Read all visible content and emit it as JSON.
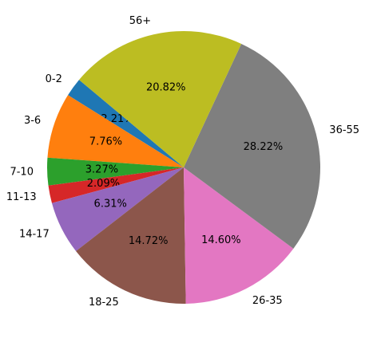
{
  "chart_data": {
    "type": "pie",
    "categories": [
      "0-2",
      "3-6",
      "7-10",
      "11-13",
      "14-17",
      "18-25",
      "26-35",
      "36-55",
      "56+"
    ],
    "values": [
      2.21,
      7.76,
      3.27,
      2.09,
      6.31,
      14.72,
      14.6,
      28.22,
      20.82
    ],
    "value_labels": [
      "2.21%",
      "7.76%",
      "3.27%",
      "2.09%",
      "6.31%",
      "14.72%",
      "14.60%",
      "28.22%",
      "20.82%"
    ],
    "colors": [
      "#1f77b4",
      "#ff7f0e",
      "#2ca02c",
      "#d62728",
      "#9467bd",
      "#8c564b",
      "#e377c2",
      "#7f7f7f",
      "#bcbd22"
    ]
  }
}
